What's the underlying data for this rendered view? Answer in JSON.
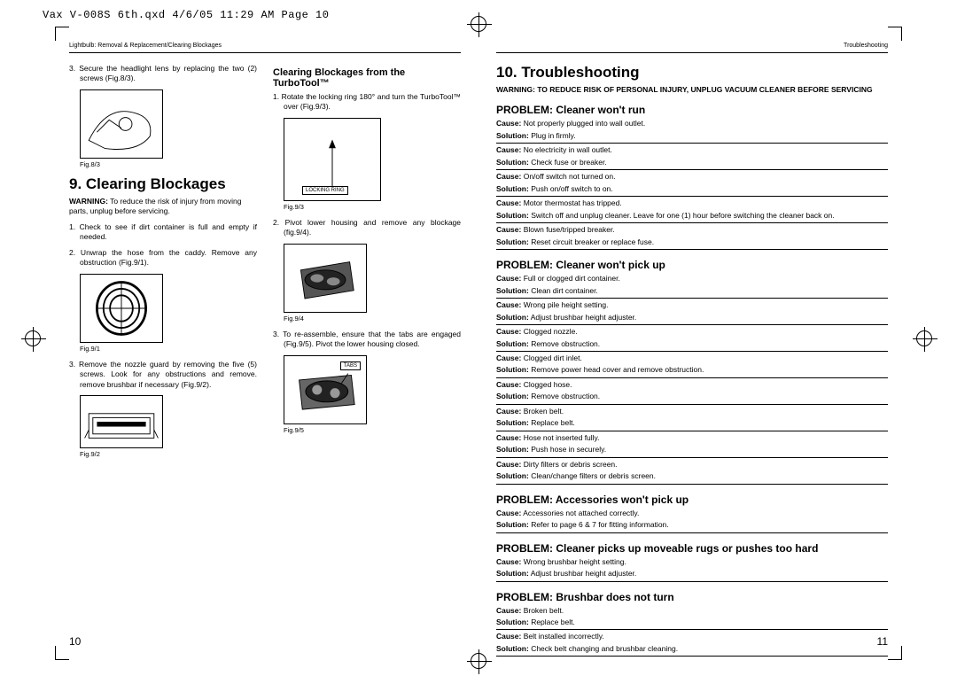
{
  "qxd": "Vax V-008S 6th.qxd  4/6/05  11:29 AM  Page 10",
  "header_left": "Lightbulb: Removal & Replacement/Clearing Blockages",
  "header_right": "Troubleshooting",
  "left": {
    "step3": "3. Secure the headlight lens by replacing the two (2) screws (Fig.8/3).",
    "fig83": "Fig.8/3",
    "section9": "9. Clearing Blockages",
    "warn": "To reduce the risk of injury from moving parts, unplug before servicing.",
    "s1": "1. Check to see if dirt container is full and empty if needed.",
    "s2": "2. Unwrap the hose from the caddy. Remove any obstruction (Fig.9/1).",
    "fig91": "Fig.9/1",
    "s3": "3. Remove the nozzle guard by removing the five (5) screws. Look for any obstructions and remove. remove brushbar if necessary (Fig.9/2).",
    "fig92": "Fig.9/2",
    "col2title": "Clearing Blockages from the TurboTool™",
    "c2s1": "1. Rotate the locking ring 180° and turn the TurboTool™ over (Fig.9/3).",
    "locking": "LOCKING RING",
    "fig93": "Fig.9/3",
    "c2s2": "2. Pivot lower housing and remove any blockage (fig.9/4).",
    "fig94": "Fig.9/4",
    "c2s3": "3. To re-assemble, ensure that the tabs are engaged (Fig.9/5). Pivot the lower housing closed.",
    "tabs": "TABS",
    "fig95": "Fig.9/5"
  },
  "right": {
    "title": "10. Troubleshooting",
    "warning": "WARNING: TO REDUCE RISK OF PERSONAL INJURY,  UNPLUG VACUUM CLEANER BEFORE SERVICING",
    "problems": [
      {
        "title": "PROBLEM: Cleaner won't run",
        "rows": [
          [
            "Cause:",
            "Not properly plugged into wall outlet.",
            "Solution:",
            "Plug in firmly."
          ],
          [
            "Cause:",
            "No electricity in wall outlet.",
            "Solution:",
            "Check fuse or breaker."
          ],
          [
            "Cause:",
            "On/off switch not turned on.",
            "Solution:",
            "Push on/off switch to on."
          ],
          [
            "Cause:",
            "Motor thermostat has tripped.",
            "Solution:",
            "Switch off and unplug cleaner. Leave for one (1) hour before switching the cleaner back on."
          ],
          [
            "Cause:",
            "Blown fuse/tripped breaker.",
            "Solution:",
            "Reset circuit breaker or replace fuse."
          ]
        ]
      },
      {
        "title": "PROBLEM: Cleaner won't pick up",
        "rows": [
          [
            "Cause:",
            "Full or clogged dirt container.",
            "Solution:",
            "Clean dirt container."
          ],
          [
            "Cause:",
            "Wrong pile height setting.",
            "Solution:",
            "Adjust brushbar height adjuster."
          ],
          [
            "Cause:",
            "Clogged nozzle.",
            "Solution:",
            "Remove obstruction."
          ],
          [
            "Cause:",
            "Clogged dirt inlet.",
            "Solution:",
            "Remove power head cover and remove obstruction."
          ],
          [
            "Cause:",
            "Clogged hose.",
            "Solution:",
            "Remove obstruction."
          ],
          [
            "Cause:",
            "Broken belt.",
            "Solution:",
            "Replace belt."
          ],
          [
            "Cause:",
            "Hose not inserted fully.",
            "Solution:",
            "Push hose in securely."
          ],
          [
            "Cause:",
            "Dirty filters or debris screen.",
            "Solution:",
            "Clean/change filters or debris screen."
          ]
        ]
      },
      {
        "title": "PROBLEM: Accessories won't pick up",
        "rows": [
          [
            "Cause:",
            "Accessories not attached correctly.",
            "Solution:",
            "Refer to page 6 & 7 for fitting information."
          ]
        ]
      },
      {
        "title": "PROBLEM: Cleaner picks up moveable rugs or pushes too hard",
        "rows": [
          [
            "Cause:",
            "Wrong brushbar height setting.",
            "Solution:",
            "Adjust brushbar height adjuster."
          ]
        ]
      },
      {
        "title": "PROBLEM: Brushbar does not turn",
        "rows": [
          [
            "Cause:",
            "Broken belt.",
            "Solution:",
            "Replace belt."
          ],
          [
            "Cause:",
            "Belt installed incorrectly.",
            "Solution:",
            "Check belt changing and brushbar cleaning."
          ]
        ]
      }
    ]
  },
  "page_left": "10",
  "page_right": "11"
}
